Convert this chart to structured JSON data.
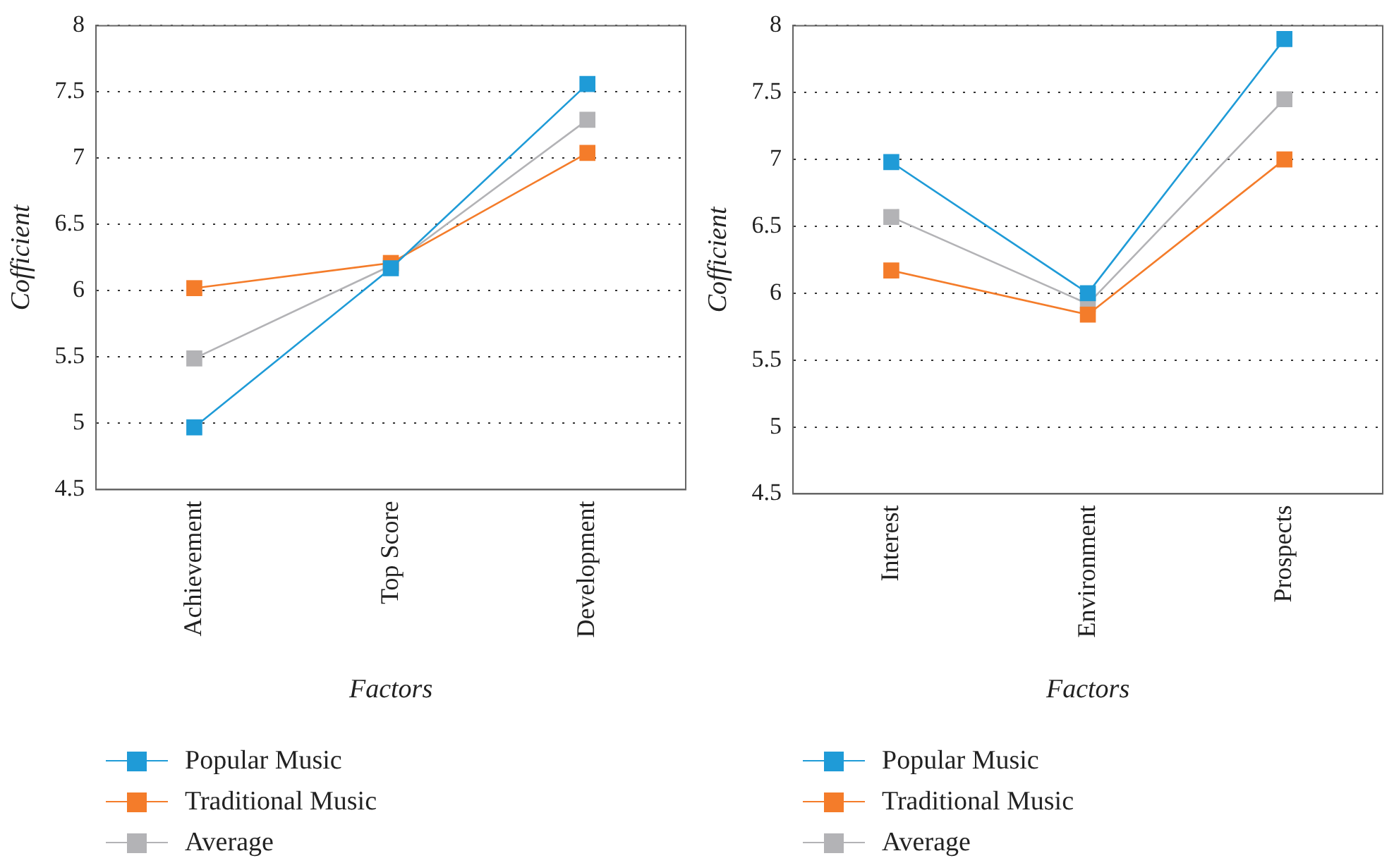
{
  "chart_data": [
    {
      "type": "line",
      "xlabel": "Factors",
      "ylabel": "Cofficient",
      "categories": [
        "Achievement",
        "Top Score",
        "Development"
      ],
      "ylim": [
        4.5,
        8
      ],
      "yticks": [
        4.5,
        5,
        5.5,
        6,
        6.5,
        7,
        7.5,
        8
      ],
      "grid": "y",
      "legend": "bottom",
      "marker": "square",
      "line_style": "solid",
      "series": [
        {
          "name": "Popular Music",
          "color": "#1f9bd7",
          "values": [
            4.97,
            6.17,
            7.56
          ]
        },
        {
          "name": "Traditional Music",
          "color": "#f47c2a",
          "values": [
            6.02,
            6.21,
            7.04
          ]
        },
        {
          "name": "Average",
          "color": "#b3b3b6",
          "values": [
            5.49,
            6.19,
            7.29
          ]
        }
      ]
    },
    {
      "type": "line",
      "xlabel": "Factors",
      "ylabel": "Cofficient",
      "categories": [
        "Interest",
        "Environment",
        "Prospects"
      ],
      "ylim": [
        4.5,
        8
      ],
      "yticks": [
        4.5,
        5,
        5.5,
        6,
        6.5,
        7,
        7.5,
        8
      ],
      "grid": "y",
      "legend": "bottom",
      "marker": "square",
      "line_style": "solid",
      "series": [
        {
          "name": "Popular Music",
          "color": "#1f9bd7",
          "values": [
            6.98,
            6.0,
            7.9
          ]
        },
        {
          "name": "Traditional Music",
          "color": "#f47c2a",
          "values": [
            6.17,
            5.84,
            7.0
          ]
        },
        {
          "name": "Average",
          "color": "#b3b3b6",
          "values": [
            6.57,
            5.92,
            7.45
          ]
        }
      ]
    }
  ]
}
